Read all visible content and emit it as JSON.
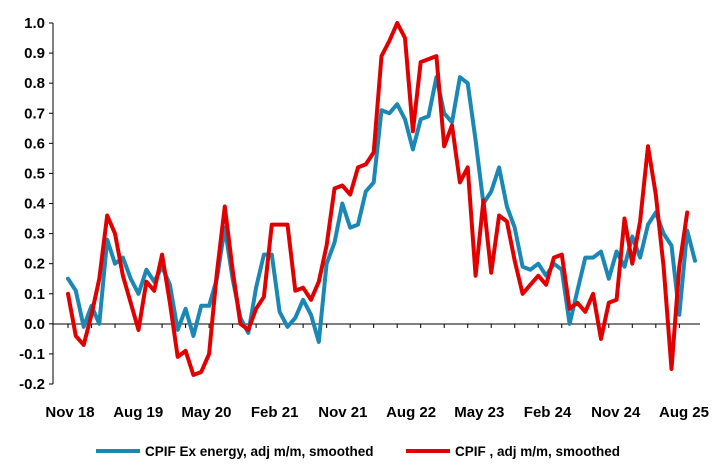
{
  "chart_data": {
    "type": "line",
    "title": "",
    "xlabel": "",
    "ylabel": "",
    "ylim": [
      -0.2,
      1.0
    ],
    "yticks": [
      "1.0",
      "0.9",
      "0.8",
      "0.7",
      "0.6",
      "0.5",
      "0.4",
      "0.3",
      "0.2",
      "0.1",
      "0.0",
      "-0.1",
      "-0.2"
    ],
    "x_start": "Nov 18",
    "x_end": "Aug 25",
    "x_tick_labels": [
      "Nov 18",
      "Aug 19",
      "May 20",
      "Feb 21",
      "Nov 21",
      "Aug 22",
      "May 23",
      "Feb 24",
      "Nov 24",
      "Aug 25"
    ],
    "grid": false,
    "legend_position": "bottom",
    "series": [
      {
        "name": "CPIF Ex energy, adj m/m, smoothed",
        "color": "#1a87b4",
        "values": [
          0.15,
          0.11,
          -0.01,
          0.06,
          0.0,
          0.28,
          0.2,
          0.22,
          0.15,
          0.1,
          0.18,
          0.14,
          0.19,
          0.13,
          -0.02,
          0.05,
          -0.04,
          0.06,
          0.06,
          0.15,
          0.32,
          0.15,
          0.02,
          -0.03,
          0.12,
          0.23,
          0.23,
          0.04,
          -0.01,
          0.02,
          0.08,
          0.03,
          -0.06,
          0.2,
          0.27,
          0.4,
          0.32,
          0.33,
          0.44,
          0.47,
          0.71,
          0.7,
          0.73,
          0.68,
          0.58,
          0.68,
          0.69,
          0.82,
          0.7,
          0.67,
          0.82,
          0.8,
          0.61,
          0.4,
          0.44,
          0.52,
          0.39,
          0.32,
          0.19,
          0.18,
          0.2,
          0.16,
          0.2,
          0.18,
          0.0,
          0.11,
          0.22,
          0.22,
          0.24,
          0.15,
          0.24,
          0.19,
          0.29,
          0.22,
          0.33,
          0.37,
          0.3,
          0.26,
          0.03,
          0.31,
          0.21
        ]
      },
      {
        "name": "CPIF , adj m/m, smoothed",
        "color": "#e00000",
        "values": [
          0.1,
          -0.04,
          -0.07,
          0.03,
          0.15,
          0.36,
          0.3,
          0.16,
          0.07,
          -0.02,
          0.14,
          0.11,
          0.23,
          0.07,
          -0.11,
          -0.09,
          -0.17,
          -0.16,
          -0.1,
          0.17,
          0.39,
          0.18,
          0.0,
          -0.02,
          0.05,
          0.09,
          0.33,
          0.33,
          0.33,
          0.11,
          0.12,
          0.08,
          0.14,
          0.26,
          0.45,
          0.46,
          0.43,
          0.52,
          0.53,
          0.57,
          0.89,
          0.94,
          1.0,
          0.95,
          0.64,
          0.87,
          0.88,
          0.89,
          0.59,
          0.66,
          0.47,
          0.52,
          0.16,
          0.41,
          0.17,
          0.36,
          0.34,
          0.21,
          0.1,
          0.13,
          0.16,
          0.13,
          0.22,
          0.23,
          0.05,
          0.07,
          0.04,
          0.1,
          -0.05,
          0.07,
          0.08,
          0.35,
          0.2,
          0.34,
          0.59,
          0.43,
          0.19,
          -0.15,
          0.19,
          0.37
        ]
      }
    ]
  }
}
